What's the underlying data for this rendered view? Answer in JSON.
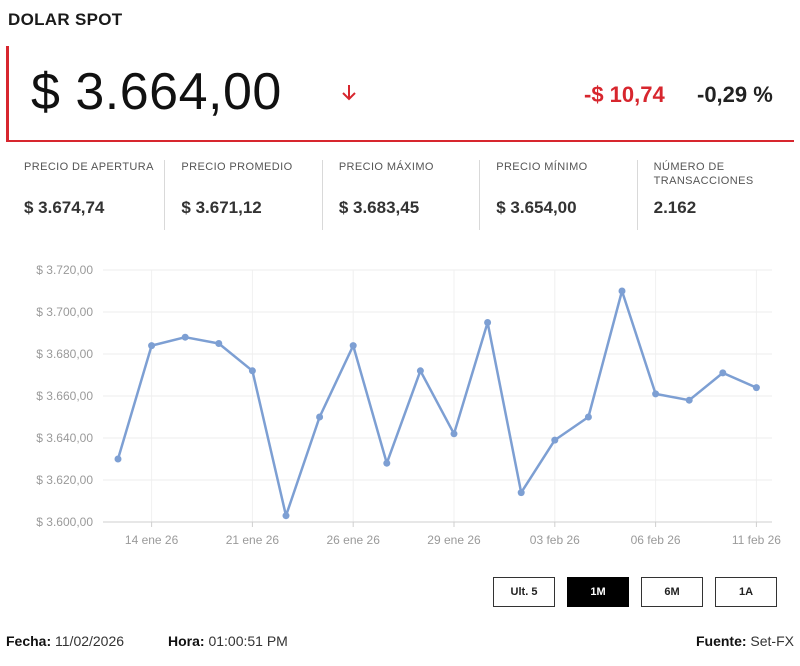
{
  "header": {
    "title": "DOLAR SPOT"
  },
  "quote": {
    "price": "$ 3.664,00",
    "change_abs": "-$ 10,74",
    "change_pct": "-0,29 %",
    "direction_icon": "arrow-down-icon",
    "negative_color": "#d7262e"
  },
  "stats": [
    {
      "label": "PRECIO DE APERTURA",
      "value": "$ 3.674,74"
    },
    {
      "label": "PRECIO PROMEDIO",
      "value": "$ 3.671,12"
    },
    {
      "label": "PRECIO MÁXIMO",
      "value": "$ 3.683,45"
    },
    {
      "label": "PRECIO MÍNIMO",
      "value": "$ 3.654,00"
    },
    {
      "label": "NÚMERO DE TRANSACCIONES",
      "value": "2.162"
    }
  ],
  "chart_data": {
    "type": "line",
    "color": "#7d9fd3",
    "ylim": [
      3600,
      3720
    ],
    "y_ticks": [
      3600,
      3620,
      3640,
      3660,
      3680,
      3700,
      3720
    ],
    "y_tick_labels": [
      "$ 3.600,00",
      "$ 3.620,00",
      "$ 3.640,00",
      "$ 3.660,00",
      "$ 3.680,00",
      "$ 3.700,00",
      "$ 3.720,00"
    ],
    "x_tick_labels": [
      "14 ene 26",
      "21 ene 26",
      "26 ene 26",
      "29 ene 26",
      "03 feb 26",
      "06 feb 26",
      "11 feb 26"
    ],
    "x_tick_point_index": [
      1,
      4,
      7,
      10,
      13,
      16,
      19
    ],
    "values": [
      3630,
      3684,
      3688,
      3685,
      3672,
      3603,
      3650,
      3684,
      3628,
      3672,
      3642,
      3695,
      3614,
      3639,
      3650,
      3710,
      3661,
      3658,
      3671,
      3664
    ],
    "grid": true
  },
  "ranges": {
    "buttons": [
      "Ult. 5",
      "1M",
      "6M",
      "1A"
    ],
    "active": "1M"
  },
  "footer": {
    "fecha_label": "Fecha:",
    "fecha_value": "11/02/2026",
    "hora_label": "Hora:",
    "hora_value": "01:00:51 PM",
    "fuente_label": "Fuente:",
    "fuente_value": "Set-FX"
  }
}
